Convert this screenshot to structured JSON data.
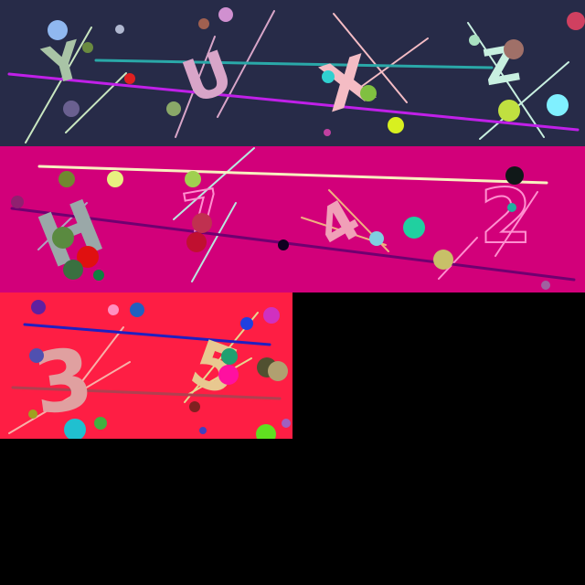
{
  "canvas": {
    "background": "#000000"
  },
  "panels": [
    {
      "name": "captcha-panel-1",
      "background": "#272b48",
      "characters": [
        "Y",
        "U",
        "X",
        "Z"
      ],
      "char_colors": [
        "#a9c4a6",
        "#d8a5c8",
        "#f4bcc4",
        "#c8f0e0"
      ]
    },
    {
      "name": "captcha-panel-2",
      "background": "#d2007a",
      "characters": [
        "H",
        "7",
        "4",
        "2"
      ],
      "char_colors": [
        "#9aa8a8",
        "#ff90d0",
        "#ff90d0",
        "#ff90d0"
      ]
    },
    {
      "name": "captcha-panel-3",
      "background": "#fe1e44",
      "characters": [
        "3",
        "5"
      ],
      "char_colors": [
        "#e0a0a0",
        "#e8c890"
      ]
    }
  ]
}
